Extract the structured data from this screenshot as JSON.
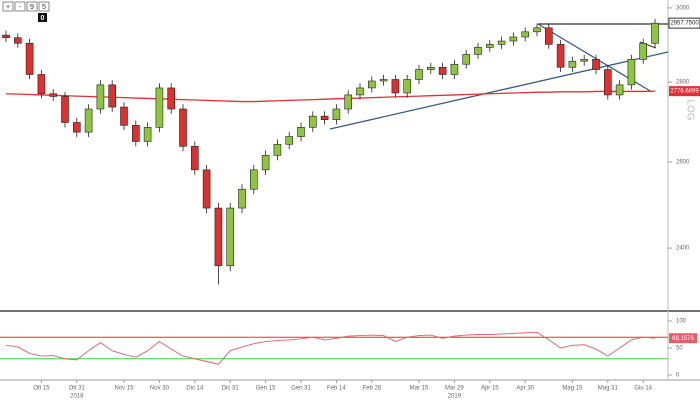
{
  "toolbar": {
    "buttons": [
      "+",
      "-",
      "9",
      "5"
    ],
    "counter": "0"
  },
  "chart_data": [
    {
      "type": "candlestick",
      "categories": [
        null,
        null,
        null,
        "Ott 15",
        null,
        null,
        "Ott 31",
        null,
        null,
        null,
        "Nov 15",
        null,
        null,
        "Nov 30",
        null,
        null,
        "Dic 14",
        null,
        null,
        "Dic 31",
        null,
        null,
        "Gen 15",
        null,
        null,
        "Gen 31",
        null,
        null,
        "Feb 14",
        null,
        null,
        "Feb 28",
        null,
        null,
        null,
        "Mar 15",
        null,
        null,
        "Mar 29",
        null,
        null,
        "Apr 15",
        null,
        null,
        "Apr 30",
        null,
        null,
        null,
        "Mag 15",
        null,
        null,
        "Mag 31",
        null,
        null,
        "Giu 14",
        null
      ],
      "year_labels": [
        "2018",
        "2019"
      ],
      "open": [
        2925,
        2918,
        2903,
        2820,
        2770,
        2763,
        2697,
        2673,
        2731,
        2793,
        2736,
        2690,
        2650,
        2685,
        2785,
        2731,
        2638,
        2581,
        2491,
        2361,
        2491,
        2535,
        2581,
        2616,
        2643,
        2662,
        2685,
        2713,
        2704,
        2731,
        2767,
        2785,
        2803,
        2807,
        2772,
        2807,
        2833,
        2839,
        2820,
        2847,
        2873,
        2892,
        2900,
        2909,
        2920,
        2934,
        2945,
        2900,
        2839,
        2855,
        2860,
        2833,
        2767,
        2793,
        2860,
        2903
      ],
      "high": [
        2937,
        2930,
        2915,
        2832,
        2782,
        2775,
        2709,
        2743,
        2805,
        2805,
        2748,
        2702,
        2697,
        2797,
        2797,
        2743,
        2650,
        2593,
        2503,
        2503,
        2547,
        2593,
        2628,
        2655,
        2674,
        2697,
        2725,
        2725,
        2743,
        2779,
        2797,
        2815,
        2819,
        2819,
        2819,
        2845,
        2851,
        2851,
        2859,
        2885,
        2904,
        2912,
        2921,
        2932,
        2946,
        2957,
        2957,
        2912,
        2867,
        2872,
        2872,
        2845,
        2805,
        2872,
        2915,
        2969
      ],
      "low": [
        2906,
        2891,
        2808,
        2758,
        2751,
        2685,
        2661,
        2661,
        2719,
        2724,
        2678,
        2638,
        2638,
        2673,
        2719,
        2626,
        2569,
        2479,
        2320,
        2349,
        2479,
        2523,
        2569,
        2604,
        2631,
        2650,
        2673,
        2692,
        2692,
        2719,
        2755,
        2773,
        2791,
        2760,
        2760,
        2795,
        2821,
        2808,
        2808,
        2835,
        2861,
        2880,
        2888,
        2897,
        2908,
        2922,
        2888,
        2827,
        2827,
        2843,
        2821,
        2755,
        2755,
        2781,
        2848,
        2891
      ],
      "close": [
        2918,
        2903,
        2820,
        2770,
        2763,
        2697,
        2673,
        2731,
        2793,
        2736,
        2690,
        2650,
        2685,
        2785,
        2731,
        2638,
        2581,
        2491,
        2361,
        2491,
        2535,
        2581,
        2616,
        2643,
        2662,
        2685,
        2713,
        2704,
        2731,
        2767,
        2785,
        2803,
        2807,
        2772,
        2807,
        2833,
        2839,
        2820,
        2847,
        2873,
        2892,
        2900,
        2909,
        2920,
        2934,
        2945,
        2900,
        2839,
        2855,
        2860,
        2833,
        2767,
        2793,
        2860,
        2903,
        2957.75
      ],
      "up_color": "#8cc63e",
      "down_color": "#e0302e",
      "ma": {
        "values": [
          2770,
          2769,
          2768,
          2767,
          2766,
          2765,
          2764,
          2763,
          2762,
          2761,
          2760,
          2759,
          2758,
          2757,
          2756,
          2755,
          2754,
          2753,
          2752,
          2751,
          2750,
          2750,
          2751,
          2752,
          2753,
          2754,
          2755,
          2756,
          2757,
          2758,
          2759,
          2760,
          2761,
          2762,
          2763,
          2764,
          2765,
          2766,
          2767,
          2768,
          2769,
          2770,
          2771,
          2772,
          2773,
          2774,
          2774,
          2775,
          2775,
          2775,
          2776,
          2776,
          2776,
          2776,
          2776,
          2776.6899
        ],
        "color": "#e0303a"
      },
      "log_scale": true,
      "scale_label": "LOG",
      "ylim": [
        2266,
        3022
      ],
      "yticks": [
        2400,
        2600,
        2800,
        3000
      ],
      "price_label": {
        "value": 2957.75,
        "label": "2957.7500"
      },
      "ma_label": 2776.6899
    },
    {
      "type": "line",
      "values": [
        55,
        52,
        40,
        35,
        36,
        30,
        28,
        45,
        60,
        45,
        38,
        33,
        45,
        62,
        48,
        35,
        30,
        25,
        20,
        45,
        52,
        58,
        62,
        64,
        65,
        67,
        70,
        65,
        68,
        72,
        73,
        74,
        73,
        62,
        70,
        73,
        74,
        68,
        72,
        74,
        75,
        75,
        76,
        77,
        78,
        79,
        65,
        50,
        55,
        56,
        48,
        35,
        50,
        65,
        70,
        68.1576
      ],
      "color": "#e0606a",
      "ylim": [
        0,
        100
      ],
      "yticks": [
        0,
        50,
        100
      ],
      "levels": [
        {
          "value": 30,
          "color": "#44cc44"
        },
        {
          "value": 70,
          "color": "#e0303a"
        }
      ],
      "value_label": 68.1576
    }
  ]
}
